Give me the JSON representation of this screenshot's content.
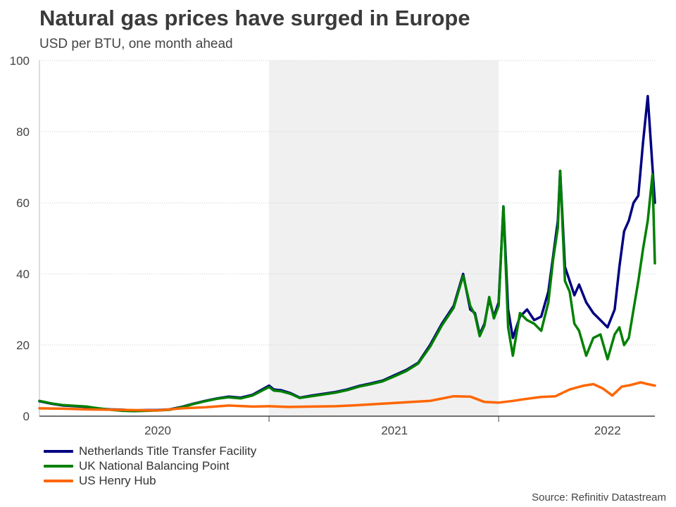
{
  "title": "Natural gas prices have surged in Europe",
  "subtitle": "USD per BTU, one month ahead",
  "source": "Source: Refinitiv Datastream",
  "chart_data": {
    "type": "line",
    "title": "Natural gas prices have surged in Europe",
    "ylabel": "USD per BTU, one month ahead",
    "xlabel": "",
    "ylim": [
      0,
      100
    ],
    "yticks": [
      0,
      20,
      40,
      60,
      80,
      100
    ],
    "xlim": [
      2019.8,
      2022.4
    ],
    "xticks": [
      {
        "label": "2020",
        "pos": 2020.3
      },
      {
        "label": "2021",
        "pos": 2021.3
      },
      {
        "label": "2022",
        "pos": 2022.2
      }
    ],
    "x_boundaries": [
      2020.77,
      2021.74
    ],
    "shaded_band": [
      2020.77,
      2021.74
    ],
    "grid": "horizontal dotted",
    "legend_position": "bottom-left",
    "series": [
      {
        "name": "Netherlands Title Transfer Facility",
        "color": "#000080",
        "x": [
          2019.8,
          2019.85,
          2019.9,
          2019.95,
          2020.0,
          2020.05,
          2020.1,
          2020.15,
          2020.2,
          2020.25,
          2020.3,
          2020.35,
          2020.4,
          2020.45,
          2020.5,
          2020.55,
          2020.6,
          2020.65,
          2020.7,
          2020.77,
          2020.79,
          2020.82,
          2020.86,
          2020.9,
          2020.95,
          2021.0,
          2021.05,
          2021.1,
          2021.15,
          2021.2,
          2021.25,
          2021.3,
          2021.35,
          2021.4,
          2021.45,
          2021.5,
          2021.55,
          2021.59,
          2021.62,
          2021.64,
          2021.66,
          2021.68,
          2021.7,
          2021.72,
          2021.74,
          2021.76,
          2021.78,
          2021.8,
          2021.83,
          2021.86,
          2021.89,
          2021.92,
          2021.95,
          2021.97,
          2021.99,
          2022.0,
          2022.02,
          2022.04,
          2022.06,
          2022.08,
          2022.11,
          2022.14,
          2022.17,
          2022.2,
          2022.23,
          2022.25,
          2022.27,
          2022.29,
          2022.31,
          2022.33,
          2022.35,
          2022.37,
          2022.39,
          2022.4
        ],
        "values": [
          4.2,
          3.5,
          3.0,
          2.8,
          2.6,
          2.1,
          1.9,
          1.8,
          1.6,
          1.7,
          1.7,
          1.9,
          2.6,
          3.5,
          4.3,
          5.0,
          5.5,
          5.2,
          6.0,
          8.6,
          7.5,
          7.3,
          6.5,
          5.2,
          5.8,
          6.3,
          6.8,
          7.5,
          8.5,
          9.2,
          10.0,
          11.5,
          13.0,
          15.0,
          20.0,
          26.0,
          31.0,
          40.0,
          30.0,
          29.0,
          23.0,
          26.0,
          33.0,
          28.0,
          32.0,
          59.0,
          30.0,
          22.0,
          28.0,
          30.0,
          27.0,
          28.0,
          35.0,
          45.0,
          55.0,
          69.0,
          42.0,
          38.0,
          34.0,
          37.0,
          32.0,
          29.0,
          27.0,
          25.0,
          30.0,
          42.0,
          52.0,
          55.0,
          60.0,
          62.0,
          77.0,
          90.0,
          70.0,
          60.0
        ]
      },
      {
        "name": "UK National Balancing Point",
        "color": "#008000",
        "x": [
          2019.8,
          2019.85,
          2019.9,
          2019.95,
          2020.0,
          2020.05,
          2020.1,
          2020.15,
          2020.2,
          2020.25,
          2020.3,
          2020.35,
          2020.4,
          2020.45,
          2020.5,
          2020.55,
          2020.6,
          2020.65,
          2020.7,
          2020.77,
          2020.79,
          2020.82,
          2020.86,
          2020.9,
          2020.95,
          2021.0,
          2021.05,
          2021.1,
          2021.15,
          2021.2,
          2021.25,
          2021.3,
          2021.35,
          2021.4,
          2021.45,
          2021.5,
          2021.55,
          2021.59,
          2021.62,
          2021.64,
          2021.66,
          2021.68,
          2021.7,
          2021.72,
          2021.74,
          2021.76,
          2021.78,
          2021.8,
          2021.83,
          2021.86,
          2021.89,
          2021.92,
          2021.95,
          2021.97,
          2021.99,
          2022.0,
          2022.02,
          2022.04,
          2022.06,
          2022.08,
          2022.11,
          2022.14,
          2022.17,
          2022.2,
          2022.23,
          2022.25,
          2022.27,
          2022.29,
          2022.31,
          2022.33,
          2022.35,
          2022.37,
          2022.39,
          2022.4
        ],
        "values": [
          4.3,
          3.6,
          3.1,
          2.9,
          2.7,
          2.2,
          1.8,
          1.5,
          1.4,
          1.5,
          1.6,
          1.8,
          2.5,
          3.4,
          4.2,
          4.9,
          5.3,
          5.0,
          5.8,
          8.2,
          7.2,
          7.0,
          6.3,
          5.1,
          5.6,
          6.1,
          6.6,
          7.3,
          8.3,
          9.0,
          9.8,
          11.2,
          12.7,
          14.8,
          19.5,
          25.5,
          30.5,
          39.5,
          31.0,
          28.5,
          22.5,
          25.5,
          33.5,
          27.5,
          31.0,
          59.0,
          25.0,
          17.0,
          29.0,
          27.0,
          26.0,
          24.0,
          32.0,
          44.0,
          53.0,
          69.0,
          38.0,
          35.0,
          26.0,
          24.0,
          17.0,
          22.0,
          23.0,
          16.0,
          23.0,
          25.0,
          20.0,
          22.0,
          30.0,
          38.0,
          47.0,
          55.0,
          68.0,
          43.0
        ]
      },
      {
        "name": "US Henry Hub",
        "color": "#FF6600",
        "x": [
          2019.8,
          2019.9,
          2020.0,
          2020.1,
          2020.2,
          2020.3,
          2020.4,
          2020.5,
          2020.6,
          2020.7,
          2020.77,
          2020.85,
          2020.95,
          2021.05,
          2021.15,
          2021.25,
          2021.35,
          2021.45,
          2021.55,
          2021.62,
          2021.68,
          2021.74,
          2021.8,
          2021.86,
          2021.92,
          2021.98,
          2022.04,
          2022.1,
          2022.14,
          2022.18,
          2022.22,
          2022.26,
          2022.3,
          2022.34,
          2022.37,
          2022.4
        ],
        "values": [
          2.2,
          2.1,
          1.9,
          1.8,
          1.7,
          1.6,
          2.2,
          2.5,
          3.0,
          2.7,
          2.8,
          2.6,
          2.7,
          2.8,
          3.1,
          3.5,
          3.9,
          4.3,
          5.6,
          5.5,
          4.0,
          3.8,
          4.3,
          4.9,
          5.4,
          5.6,
          7.5,
          8.6,
          9.0,
          7.8,
          5.8,
          8.3,
          8.8,
          9.5,
          9.0,
          8.6
        ]
      }
    ]
  }
}
